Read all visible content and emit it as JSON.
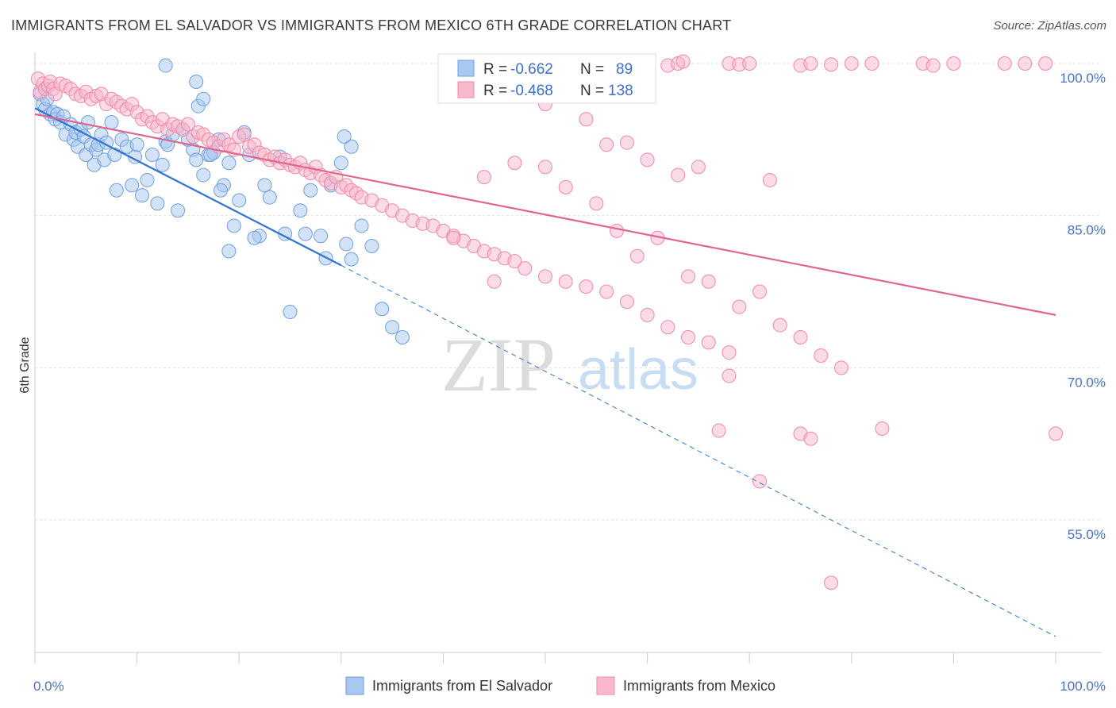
{
  "title": "IMMIGRANTS FROM EL SALVADOR VS IMMIGRANTS FROM MEXICO 6TH GRADE CORRELATION CHART",
  "source": "Source: ZipAtlas.com",
  "watermark": {
    "zip": "ZIP",
    "atlas": "atlas"
  },
  "legend_top": {
    "rows": [
      {
        "r_label": "R = ",
        "r_value": "-0.662",
        "n_label": "N = ",
        "n_value": "89",
        "color": "#a8c8f0"
      },
      {
        "r_label": "R = ",
        "r_value": "-0.468",
        "n_label": "N = ",
        "n_value": "138",
        "color": "#f8b8cc"
      }
    ]
  },
  "chart_data": {
    "type": "scatter",
    "ylabel": "6th Grade",
    "xlim": [
      0,
      100
    ],
    "ylim": [
      41,
      101
    ],
    "x_tick_labels": [
      {
        "value": 0,
        "label": "0.0%"
      },
      {
        "value": 100,
        "label": "100.0%"
      }
    ],
    "y_tick_labels": [
      {
        "value": 100,
        "label": "100.0%"
      },
      {
        "value": 85,
        "label": "85.0%"
      },
      {
        "value": 70,
        "label": "70.0%"
      },
      {
        "value": 55,
        "label": "55.0%"
      }
    ],
    "series": [
      {
        "name": "Immigrants from El Salvador",
        "color": "#a8c8f0",
        "stroke": "#6f9ee0",
        "trend_color": "#2f74d0",
        "trend": {
          "x0": 0,
          "y0": 95.6,
          "x1": 30,
          "y1": 80.1,
          "dash_to_x": 100,
          "dash_to_y": 43.5
        },
        "points": [
          [
            0.5,
            97
          ],
          [
            0.8,
            96
          ],
          [
            1,
            95.5
          ],
          [
            1.2,
            96.5
          ],
          [
            1.5,
            95
          ],
          [
            1.8,
            95.2
          ],
          [
            2,
            94.5
          ],
          [
            2.2,
            95
          ],
          [
            2.5,
            94.2
          ],
          [
            2.8,
            94.8
          ],
          [
            3,
            93
          ],
          [
            3.5,
            94
          ],
          [
            3.8,
            92.5
          ],
          [
            4,
            93.2
          ],
          [
            4.2,
            91.8
          ],
          [
            4.5,
            93.5
          ],
          [
            4.8,
            92.8
          ],
          [
            5,
            91
          ],
          [
            5.2,
            94.2
          ],
          [
            5.5,
            92
          ],
          [
            5.8,
            90
          ],
          [
            6,
            91.5
          ],
          [
            6.2,
            92
          ],
          [
            6.5,
            93
          ],
          [
            6.8,
            90.5
          ],
          [
            7,
            92.2
          ],
          [
            7.5,
            94.2
          ],
          [
            7.8,
            91
          ],
          [
            8,
            87.5
          ],
          [
            8.5,
            92.5
          ],
          [
            9,
            91.8
          ],
          [
            9.5,
            88
          ],
          [
            9.8,
            90.8
          ],
          [
            10,
            92
          ],
          [
            10.5,
            87
          ],
          [
            11,
            88.5
          ],
          [
            11.5,
            91
          ],
          [
            12,
            86.2
          ],
          [
            12.5,
            90
          ],
          [
            12.8,
            92.3
          ],
          [
            13,
            92
          ],
          [
            13.5,
            93
          ],
          [
            14,
            85.5
          ],
          [
            14.5,
            93.5
          ],
          [
            15,
            92.5
          ],
          [
            15.5,
            91.5
          ],
          [
            15.8,
            90.5
          ],
          [
            16,
            95.8
          ],
          [
            16.5,
            89
          ],
          [
            17,
            91
          ],
          [
            17.5,
            91.2
          ],
          [
            18,
            92.5
          ],
          [
            18.5,
            88
          ],
          [
            19,
            90.2
          ],
          [
            19.5,
            84
          ],
          [
            20,
            86.5
          ],
          [
            20.5,
            93.2
          ],
          [
            21,
            91
          ],
          [
            22,
            83
          ],
          [
            22.5,
            88
          ],
          [
            23,
            86.8
          ],
          [
            24,
            90.8
          ],
          [
            24.5,
            83.2
          ],
          [
            25,
            75.5
          ],
          [
            26,
            85.5
          ],
          [
            27,
            87.5
          ],
          [
            28,
            83
          ],
          [
            28.5,
            80.8
          ],
          [
            29,
            88
          ],
          [
            30,
            90.2
          ],
          [
            31,
            91.8
          ],
          [
            32,
            84
          ],
          [
            33,
            82
          ],
          [
            34,
            75.8
          ],
          [
            35,
            74
          ],
          [
            36,
            73
          ],
          [
            12.8,
            99.8
          ],
          [
            15.8,
            98.2
          ],
          [
            16.5,
            96.5
          ],
          [
            17.2,
            91
          ],
          [
            18.2,
            87.5
          ],
          [
            21.5,
            82.8
          ],
          [
            19,
            81.5
          ],
          [
            30.5,
            82.2
          ],
          [
            30.3,
            92.8
          ],
          [
            31,
            80.7
          ],
          [
            26.5,
            83.2
          ]
        ]
      },
      {
        "name": "Immigrants from Mexico",
        "color": "#f8b8cc",
        "stroke": "#ee8aa8",
        "trend_color": "#e0668e",
        "trend": {
          "x0": 0,
          "y0": 95,
          "x1": 100,
          "y1": 75.2
        },
        "points": [
          [
            0.3,
            98.5
          ],
          [
            0.5,
            97.2
          ],
          [
            0.8,
            98
          ],
          [
            1,
            97.5
          ],
          [
            1.3,
            97.8
          ],
          [
            1.5,
            98.2
          ],
          [
            1.8,
            97.5
          ],
          [
            2,
            97
          ],
          [
            2.5,
            98
          ],
          [
            3,
            97.8
          ],
          [
            3.5,
            97.5
          ],
          [
            4,
            97
          ],
          [
            4.5,
            96.8
          ],
          [
            5,
            97.2
          ],
          [
            5.5,
            96.5
          ],
          [
            6,
            96.8
          ],
          [
            6.5,
            97
          ],
          [
            7,
            96
          ],
          [
            7.5,
            96.5
          ],
          [
            8,
            96.2
          ],
          [
            8.5,
            95.8
          ],
          [
            9,
            95.5
          ],
          [
            9.5,
            96
          ],
          [
            10,
            95.2
          ],
          [
            10.5,
            94.5
          ],
          [
            11,
            94.8
          ],
          [
            11.5,
            94.2
          ],
          [
            12,
            93.8
          ],
          [
            12.5,
            94.5
          ],
          [
            13,
            93.5
          ],
          [
            13.5,
            94
          ],
          [
            14,
            93.8
          ],
          [
            14.5,
            93.5
          ],
          [
            15,
            94
          ],
          [
            15.5,
            92.8
          ],
          [
            16,
            93.2
          ],
          [
            16.5,
            93
          ],
          [
            17,
            92.5
          ],
          [
            17.5,
            92.2
          ],
          [
            18,
            91.8
          ],
          [
            18.5,
            92.5
          ],
          [
            19,
            92
          ],
          [
            19.5,
            91.5
          ],
          [
            20,
            92.8
          ],
          [
            20.5,
            93
          ],
          [
            21,
            91.8
          ],
          [
            21.5,
            92
          ],
          [
            22,
            91.2
          ],
          [
            22.5,
            91
          ],
          [
            23,
            90.5
          ],
          [
            23.5,
            90.8
          ],
          [
            24,
            90.2
          ],
          [
            24.5,
            90.5
          ],
          [
            25,
            90
          ],
          [
            25.5,
            89.8
          ],
          [
            26,
            90.2
          ],
          [
            26.5,
            89.5
          ],
          [
            27,
            89.2
          ],
          [
            27.5,
            89.8
          ],
          [
            28,
            89
          ],
          [
            28.5,
            88.5
          ],
          [
            29,
            88.2
          ],
          [
            29.5,
            88.8
          ],
          [
            30,
            87.8
          ],
          [
            30.5,
            88
          ],
          [
            31,
            87.5
          ],
          [
            31.5,
            87.2
          ],
          [
            32,
            86.8
          ],
          [
            33,
            86.5
          ],
          [
            34,
            86
          ],
          [
            35,
            85.5
          ],
          [
            36,
            85
          ],
          [
            37,
            84.5
          ],
          [
            38,
            84.2
          ],
          [
            39,
            84
          ],
          [
            40,
            83.5
          ],
          [
            41,
            83
          ],
          [
            42,
            82.5
          ],
          [
            43,
            82
          ],
          [
            44,
            81.5
          ],
          [
            45,
            81.2
          ],
          [
            46,
            80.8
          ],
          [
            47,
            80.5
          ],
          [
            48,
            79.8
          ],
          [
            50,
            79
          ],
          [
            52,
            78.5
          ],
          [
            54,
            78
          ],
          [
            56,
            77.5
          ],
          [
            58,
            76.5
          ],
          [
            60,
            75.2
          ],
          [
            62,
            74
          ],
          [
            64,
            73
          ],
          [
            66,
            72.5
          ],
          [
            68,
            71.5
          ],
          [
            56,
            92
          ],
          [
            60,
            90.5
          ],
          [
            63,
            89
          ],
          [
            47,
            90.2
          ],
          [
            50,
            89.8
          ],
          [
            52,
            87.8
          ],
          [
            55,
            86.2
          ],
          [
            57,
            83.5
          ],
          [
            59,
            81
          ],
          [
            61,
            82.8
          ],
          [
            64,
            79
          ],
          [
            66,
            78.5
          ],
          [
            69,
            76
          ],
          [
            71,
            77.5
          ],
          [
            73,
            74.2
          ],
          [
            75,
            73
          ],
          [
            77,
            71.2
          ],
          [
            79,
            70
          ],
          [
            68,
            69.2
          ],
          [
            67,
            63.8
          ],
          [
            75,
            63.5
          ],
          [
            76,
            63
          ],
          [
            83,
            64
          ],
          [
            100,
            63.5
          ],
          [
            71,
            58.8
          ],
          [
            78,
            48.8
          ],
          [
            62,
            99.8
          ],
          [
            63,
            100
          ],
          [
            63.5,
            100.2
          ],
          [
            68,
            100
          ],
          [
            69,
            99.9
          ],
          [
            70,
            100
          ],
          [
            75,
            99.8
          ],
          [
            76,
            100
          ],
          [
            78,
            99.9
          ],
          [
            80,
            100
          ],
          [
            82,
            100
          ],
          [
            87,
            100
          ],
          [
            88,
            99.8
          ],
          [
            90,
            100
          ],
          [
            95,
            100
          ],
          [
            97,
            100
          ],
          [
            99,
            100
          ],
          [
            65,
            89.8
          ],
          [
            50,
            96
          ],
          [
            54,
            94.5
          ],
          [
            58,
            92.2
          ],
          [
            44,
            88.8
          ],
          [
            72,
            88.5
          ],
          [
            41,
            82.8
          ],
          [
            45,
            78.5
          ]
        ]
      }
    ]
  }
}
